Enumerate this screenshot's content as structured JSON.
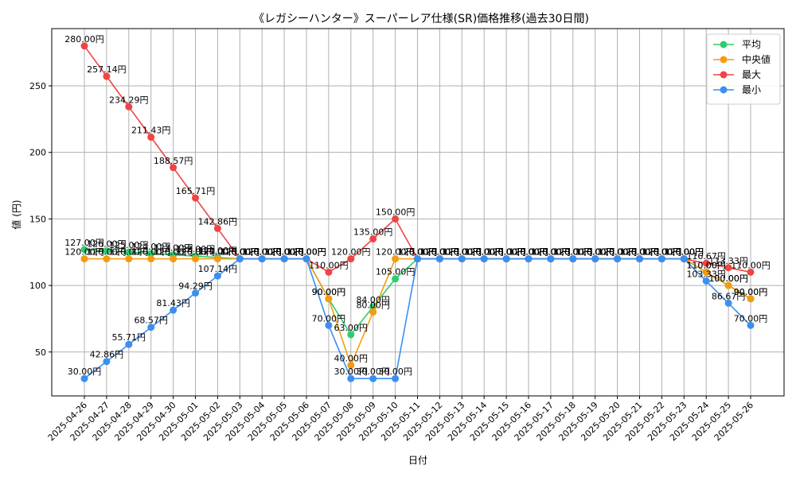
{
  "chart_data": {
    "type": "line",
    "title": "《レガシーハンター》スーパーレア仕様(SR)価格推移(過去30日間)",
    "xlabel": "日付",
    "ylabel": "値 (円)",
    "value_suffix": "円",
    "ylim": [
      17,
      293
    ],
    "yticks": [
      50,
      100,
      150,
      200,
      250
    ],
    "grid": true,
    "legend_position": "top-right",
    "x": [
      "2025-04-26",
      "2025-04-27",
      "2025-04-28",
      "2025-04-29",
      "2025-04-30",
      "2025-05-01",
      "2025-05-02",
      "2025-05-03",
      "2025-05-04",
      "2025-05-05",
      "2025-05-06",
      "2025-05-07",
      "2025-05-08",
      "2025-05-09",
      "2025-05-10",
      "2025-05-11",
      "2025-05-12",
      "2025-05-13",
      "2025-05-14",
      "2025-05-15",
      "2025-05-16",
      "2025-05-17",
      "2025-05-18",
      "2025-05-19",
      "2025-05-20",
      "2025-05-21",
      "2025-05-22",
      "2025-05-23",
      "2025-05-24",
      "2025-05-25",
      "2025-05-26"
    ],
    "series": [
      {
        "name": "平均",
        "color": "#2ecc71",
        "values": [
          127.0,
          126.0,
          125.0,
          124.0,
          123.0,
          122.0,
          121.0,
          120.0,
          120.0,
          120.0,
          120.0,
          90.0,
          63.0,
          84.0,
          105.0,
          120.0,
          120.0,
          120.0,
          120.0,
          120.0,
          120.0,
          120.0,
          120.0,
          120.0,
          120.0,
          120.0,
          120.0,
          120.0,
          110.0,
          100.0,
          90.0
        ]
      },
      {
        "name": "中央値",
        "color": "#f39c12",
        "values": [
          120.0,
          120.0,
          120.0,
          120.0,
          120.0,
          120.0,
          120.0,
          120.0,
          120.0,
          120.0,
          120.0,
          90.0,
          40.0,
          80.0,
          120.0,
          120.0,
          120.0,
          120.0,
          120.0,
          120.0,
          120.0,
          120.0,
          120.0,
          120.0,
          120.0,
          120.0,
          120.0,
          120.0,
          110.0,
          100.0,
          90.0
        ]
      },
      {
        "name": "最大",
        "color": "#ef4444",
        "values": [
          280.0,
          257.14,
          234.29,
          211.43,
          188.57,
          165.71,
          142.86,
          120.0,
          120.0,
          120.0,
          120.0,
          110.0,
          120.0,
          135.0,
          150.0,
          120.0,
          120.0,
          120.0,
          120.0,
          120.0,
          120.0,
          120.0,
          120.0,
          120.0,
          120.0,
          120.0,
          120.0,
          120.0,
          116.67,
          113.33,
          110.0
        ]
      },
      {
        "name": "最小",
        "color": "#3b8ff0",
        "values": [
          30.0,
          42.86,
          55.71,
          68.57,
          81.43,
          94.29,
          107.14,
          120.0,
          120.0,
          120.0,
          120.0,
          70.0,
          30.0,
          30.0,
          30.0,
          120.0,
          120.0,
          120.0,
          120.0,
          120.0,
          120.0,
          120.0,
          120.0,
          120.0,
          120.0,
          120.0,
          120.0,
          120.0,
          103.33,
          86.67,
          70.0
        ]
      }
    ]
  }
}
